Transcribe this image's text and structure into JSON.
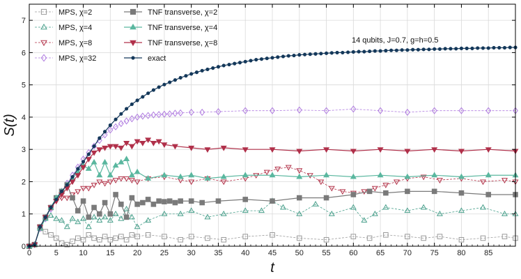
{
  "chart_data": {
    "type": "line",
    "annotation": "14 qubits, J=0.7, g=h=0.5",
    "xlabel": "t",
    "ylabel": "S(t)",
    "xlim": [
      0,
      90
    ],
    "ylim": [
      0,
      7.5
    ],
    "xticks": [
      0,
      5,
      10,
      15,
      20,
      25,
      30,
      35,
      40,
      45,
      50,
      55,
      60,
      65,
      70,
      75,
      80,
      85
    ],
    "yticks": [
      0,
      1,
      2,
      3,
      4,
      5,
      6,
      7
    ],
    "grid": true,
    "legend_position": "top-left",
    "series": [
      {
        "name": "MPS, χ=2",
        "color": "#9a9a9a",
        "marker": "square",
        "filled": false,
        "dashed": true,
        "x": [
          0,
          1,
          2,
          3,
          4,
          5,
          6,
          7,
          8,
          9,
          10,
          11,
          12,
          13,
          14,
          15,
          16,
          17,
          18,
          19,
          20,
          22,
          25,
          28,
          30,
          33,
          36,
          40,
          45,
          50,
          55,
          60,
          63,
          66,
          70,
          73,
          76,
          80,
          84,
          88,
          90
        ],
        "y": [
          0,
          0.05,
          0.55,
          0.45,
          0.35,
          0.25,
          0.1,
          0.05,
          0.15,
          0.25,
          0.2,
          0.35,
          0.25,
          0.2,
          0.3,
          0.2,
          0.25,
          0.3,
          0.2,
          0.35,
          0.3,
          0.35,
          0.3,
          0.2,
          0.3,
          0.25,
          0.2,
          0.3,
          0.35,
          0.25,
          0.2,
          0.3,
          0.25,
          0.35,
          0.3,
          0.25,
          0.3,
          0.2,
          0.25,
          0.3,
          0.25
        ]
      },
      {
        "name": "MPS, χ=4",
        "color": "#4aa08c",
        "marker": "triangle-up",
        "filled": false,
        "dashed": true,
        "x": [
          0,
          1,
          2,
          3,
          4,
          5,
          6,
          7,
          8,
          9,
          10,
          11,
          12,
          13,
          14,
          15,
          16,
          17,
          18,
          19,
          20,
          22,
          25,
          28,
          30,
          33,
          36,
          40,
          43,
          45,
          47,
          50,
          53,
          56,
          60,
          62,
          64,
          66,
          70,
          73,
          76,
          80,
          84,
          88,
          90
        ],
        "y": [
          0,
          0.05,
          0.6,
          0.9,
          0.95,
          0.85,
          0.8,
          0.6,
          0.85,
          0.75,
          0.85,
          0.6,
          0.9,
          0.8,
          0.9,
          0.8,
          1.0,
          0.85,
          1.15,
          0.9,
          0.6,
          0.8,
          1.0,
          1.0,
          1.1,
          0.9,
          1.0,
          1.1,
          1.1,
          1.4,
          1.2,
          1.0,
          1.3,
          1.0,
          1.2,
          0.8,
          1.0,
          1.2,
          1.1,
          1.2,
          1.0,
          1.1,
          1.2,
          1.0,
          1.0
        ]
      },
      {
        "name": "MPS, χ=8",
        "color": "#b3344a",
        "marker": "triangle-down",
        "filled": false,
        "dashed": true,
        "x": [
          0,
          1,
          2,
          3,
          4,
          5,
          6,
          7,
          8,
          9,
          10,
          11,
          12,
          13,
          14,
          15,
          16,
          17,
          18,
          19,
          20,
          22,
          25,
          28,
          30,
          33,
          36,
          40,
          42,
          44,
          46,
          48,
          50,
          52,
          54,
          56,
          58,
          60,
          62,
          64,
          66,
          68,
          70,
          73,
          76,
          80,
          84,
          88,
          90
        ],
        "y": [
          0,
          0.05,
          0.6,
          0.9,
          1.2,
          1.4,
          1.5,
          1.5,
          1.6,
          1.7,
          1.8,
          1.8,
          1.9,
          2.0,
          1.95,
          2.0,
          2.05,
          2.1,
          2.1,
          2.05,
          2.0,
          2.1,
          2.15,
          2.05,
          2.0,
          2.1,
          2.0,
          2.1,
          2.2,
          2.3,
          2.4,
          2.45,
          2.35,
          2.2,
          2.0,
          1.8,
          1.7,
          1.65,
          1.7,
          1.8,
          1.9,
          2.0,
          2.1,
          2.15,
          2.05,
          2.1,
          2.0,
          2.05,
          2.0
        ]
      },
      {
        "name": "MPS, χ=32",
        "color": "#b07ce0",
        "marker": "diamond",
        "filled": false,
        "dashed": true,
        "x": [
          0,
          1,
          2,
          3,
          4,
          5,
          6,
          7,
          8,
          9,
          10,
          11,
          12,
          13,
          14,
          15,
          16,
          17,
          18,
          19,
          20,
          21,
          22,
          23,
          24,
          25,
          26,
          27,
          28,
          30,
          32,
          35,
          40,
          45,
          50,
          55,
          60,
          65,
          70,
          75,
          80,
          85,
          90
        ],
        "y": [
          0,
          0.05,
          0.55,
          0.85,
          1.15,
          1.45,
          1.7,
          1.95,
          2.2,
          2.45,
          2.7,
          2.9,
          3.1,
          3.28,
          3.45,
          3.6,
          3.7,
          3.8,
          3.88,
          3.95,
          4.0,
          4.03,
          4.05,
          4.07,
          4.08,
          4.09,
          4.1,
          4.12,
          4.13,
          4.15,
          4.15,
          4.17,
          4.2,
          4.2,
          4.22,
          4.2,
          4.25,
          4.2,
          4.15,
          4.2,
          4.2,
          4.2,
          4.2
        ]
      },
      {
        "name": "TNF transverse, χ=2",
        "color": "#7a7a7a",
        "marker": "square",
        "filled": true,
        "dashed": false,
        "x": [
          0,
          1,
          2,
          3,
          4,
          5,
          6,
          7,
          8,
          9,
          10,
          11,
          12,
          13,
          14,
          15,
          16,
          17,
          18,
          19,
          20,
          21,
          22,
          23,
          24,
          25,
          26,
          27,
          28,
          30,
          32,
          35,
          40,
          45,
          50,
          55,
          60,
          63,
          66,
          70,
          75,
          80,
          85,
          90
        ],
        "y": [
          0,
          0.05,
          0.6,
          0.9,
          1.2,
          1.5,
          1.7,
          1.9,
          1.5,
          1.1,
          1.4,
          0.9,
          1.2,
          1.0,
          1.35,
          1.0,
          1.6,
          1.3,
          0.9,
          1.5,
          1.3,
          1.35,
          1.45,
          1.3,
          1.4,
          1.38,
          1.4,
          1.35,
          1.4,
          1.4,
          1.35,
          1.4,
          1.45,
          1.4,
          1.5,
          1.5,
          1.6,
          1.7,
          1.65,
          1.7,
          1.7,
          1.65,
          1.6,
          1.6
        ]
      },
      {
        "name": "TNF transverse, χ=4",
        "color": "#5ab79f",
        "marker": "triangle-up",
        "filled": true,
        "dashed": false,
        "x": [
          0,
          1,
          2,
          3,
          4,
          5,
          6,
          7,
          8,
          9,
          10,
          11,
          12,
          13,
          14,
          15,
          16,
          17,
          18,
          19,
          20,
          22,
          25,
          28,
          30,
          33,
          36,
          40,
          45,
          50,
          55,
          60,
          65,
          70,
          75,
          80,
          85,
          90
        ],
        "y": [
          0,
          0.05,
          0.55,
          0.85,
          1.2,
          1.5,
          1.7,
          1.9,
          2.1,
          2.3,
          2.5,
          2.4,
          2.6,
          2.2,
          2.6,
          2.2,
          2.5,
          2.6,
          2.7,
          2.2,
          2.3,
          2.1,
          2.2,
          2.15,
          2.2,
          2.1,
          2.15,
          2.2,
          2.2,
          2.15,
          2.2,
          2.15,
          2.2,
          2.15,
          2.2,
          2.15,
          2.2,
          2.2
        ]
      },
      {
        "name": "TNF transverse, χ=8",
        "color": "#b0304a",
        "marker": "triangle-down",
        "filled": true,
        "dashed": false,
        "x": [
          0,
          1,
          2,
          3,
          4,
          5,
          6,
          7,
          8,
          9,
          10,
          11,
          12,
          13,
          14,
          15,
          16,
          17,
          18,
          19,
          20,
          21,
          22,
          23,
          24,
          25,
          27,
          30,
          33,
          36,
          40,
          45,
          50,
          55,
          60,
          65,
          70,
          75,
          80,
          85,
          90
        ],
        "y": [
          0,
          0.05,
          0.6,
          0.9,
          1.2,
          1.4,
          1.6,
          1.8,
          2.0,
          2.2,
          2.45,
          2.7,
          2.9,
          3.0,
          3.05,
          3.1,
          3.1,
          3.05,
          3.2,
          3.1,
          3.25,
          3.2,
          3.3,
          3.2,
          3.25,
          3.15,
          3.1,
          3.05,
          3.0,
          3.05,
          3.0,
          3.0,
          2.95,
          3.0,
          2.95,
          3.0,
          2.95,
          3.0,
          2.95,
          3.0,
          2.95
        ]
      },
      {
        "name": "exact",
        "color": "#14385a",
        "marker": "circle",
        "filled": true,
        "dashed": false,
        "x": [
          0,
          1,
          2,
          3,
          4,
          5,
          6,
          7,
          8,
          9,
          10,
          11,
          12,
          13,
          14,
          15,
          16,
          17,
          18,
          19,
          20,
          21,
          22,
          23,
          24,
          25,
          26,
          27,
          28,
          29,
          30,
          31,
          32,
          33,
          34,
          35,
          36,
          37,
          38,
          39,
          40,
          41,
          42,
          43,
          44,
          45,
          46,
          47,
          48,
          49,
          50,
          51,
          52,
          53,
          54,
          55,
          56,
          57,
          58,
          59,
          60,
          61,
          62,
          63,
          64,
          65,
          66,
          67,
          68,
          69,
          70,
          71,
          72,
          73,
          74,
          75,
          76,
          77,
          78,
          79,
          80,
          81,
          82,
          83,
          84,
          85,
          86,
          87,
          88,
          89,
          90
        ],
        "y": [
          0,
          0.05,
          0.6,
          0.9,
          1.2,
          1.45,
          1.7,
          1.9,
          2.15,
          2.4,
          2.62,
          2.85,
          3.1,
          3.35,
          3.55,
          3.75,
          3.93,
          4.1,
          4.26,
          4.4,
          4.52,
          4.63,
          4.74,
          4.84,
          4.93,
          5.01,
          5.08,
          5.15,
          5.22,
          5.28,
          5.34,
          5.39,
          5.44,
          5.48,
          5.52,
          5.56,
          5.6,
          5.63,
          5.66,
          5.69,
          5.72,
          5.75,
          5.78,
          5.8,
          5.82,
          5.84,
          5.86,
          5.88,
          5.9,
          5.91,
          5.93,
          5.94,
          5.95,
          5.96,
          5.97,
          5.98,
          5.99,
          6.0,
          6.0,
          6.01,
          6.02,
          6.03,
          6.03,
          6.04,
          6.05,
          6.05,
          6.06,
          6.07,
          6.07,
          6.08,
          6.08,
          6.09,
          6.09,
          6.1,
          6.1,
          6.11,
          6.11,
          6.12,
          6.12,
          6.12,
          6.13,
          6.13,
          6.13,
          6.14,
          6.14,
          6.14,
          6.15,
          6.15,
          6.15,
          6.16,
          6.16
        ]
      }
    ]
  }
}
